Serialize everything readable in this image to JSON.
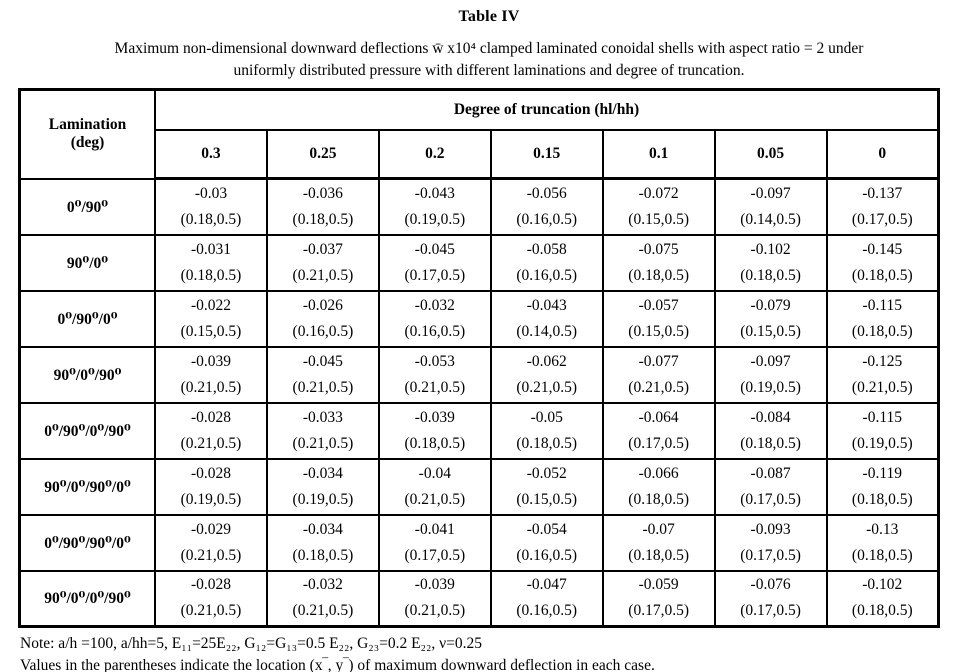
{
  "title": "Table IV",
  "caption": {
    "line1": "Maximum non-dimensional downward deflections  w̄ x10⁴ clamped laminated conoidal shells with aspect ratio = 2 under",
    "line2": "uniformly distributed pressure with different laminations and degree of truncation."
  },
  "table": {
    "corner_line1": "Lamination",
    "corner_line2": "(deg)",
    "group_header": "Degree of truncation (hl/hh)",
    "col_headers": [
      "0.3",
      "0.25",
      "0.2",
      "0.15",
      "0.1",
      "0.05",
      "0"
    ],
    "rows": [
      {
        "label": "0⁰/90⁰",
        "cells": [
          {
            "v": "-0.03",
            "loc": "(0.18,0.5)"
          },
          {
            "v": "-0.036",
            "loc": "(0.18,0.5)"
          },
          {
            "v": "-0.043",
            "loc": "(0.19,0.5)"
          },
          {
            "v": "-0.056",
            "loc": "(0.16,0.5)"
          },
          {
            "v": "-0.072",
            "loc": "(0.15,0.5)"
          },
          {
            "v": "-0.097",
            "loc": "(0.14,0.5)"
          },
          {
            "v": "-0.137",
            "loc": "(0.17,0.5)"
          }
        ]
      },
      {
        "label": "90⁰/0⁰",
        "cells": [
          {
            "v": "-0.031",
            "loc": "(0.18,0.5)"
          },
          {
            "v": "-0.037",
            "loc": "(0.21,0.5)"
          },
          {
            "v": "-0.045",
            "loc": "(0.17,0.5)"
          },
          {
            "v": "-0.058",
            "loc": "(0.16,0.5)"
          },
          {
            "v": "-0.075",
            "loc": "(0.18,0.5)"
          },
          {
            "v": "-0.102",
            "loc": "(0.18,0.5)"
          },
          {
            "v": "-0.145",
            "loc": "(0.18,0.5)"
          }
        ]
      },
      {
        "label": "0⁰/90⁰/0⁰",
        "cells": [
          {
            "v": "-0.022",
            "loc": "(0.15,0.5)"
          },
          {
            "v": "-0.026",
            "loc": "(0.16,0.5)"
          },
          {
            "v": "-0.032",
            "loc": "(0.16,0.5)"
          },
          {
            "v": "-0.043",
            "loc": "(0.14,0.5)"
          },
          {
            "v": "-0.057",
            "loc": "(0.15,0.5)"
          },
          {
            "v": "-0.079",
            "loc": "(0.15,0.5)"
          },
          {
            "v": "-0.115",
            "loloc": "",
            "loc": "(0.18,0.5)"
          }
        ]
      },
      {
        "label": "90⁰/0⁰/90⁰",
        "cells": [
          {
            "v": "-0.039",
            "loc": "(0.21,0.5)"
          },
          {
            "v": "-0.045",
            "loc": "(0.21,0.5)"
          },
          {
            "v": "-0.053",
            "loc": "(0.21,0.5)"
          },
          {
            "v": "-0.062",
            "loc": "(0.21,0.5)"
          },
          {
            "v": "-0.077",
            "loc": "(0.21,0.5)"
          },
          {
            "v": "-0.097",
            "loc": "(0.19,0.5)"
          },
          {
            "v": "-0.125",
            "loc": "(0.21,0.5)"
          }
        ]
      },
      {
        "label": "0⁰/90⁰/0⁰/90⁰",
        "cells": [
          {
            "v": "-0.028",
            "loc": "(0.21,0.5)"
          },
          {
            "v": "-0.033",
            "loc": "(0.21,0.5)"
          },
          {
            "v": "-0.039",
            "loc": "(0.18,0.5)"
          },
          {
            "v": "-0.05",
            "loc": "(0.18,0.5)"
          },
          {
            "v": "-0.064",
            "loc": "(0.17,0.5)"
          },
          {
            "v": "-0.084",
            "loc": "(0.18,0.5)"
          },
          {
            "v": "-0.115",
            "loc": "(0.19,0.5)"
          }
        ]
      },
      {
        "label": "90⁰/0⁰/90⁰/0⁰",
        "cells": [
          {
            "v": "-0.028",
            "loc": "(0.19,0.5)"
          },
          {
            "v": "-0.034",
            "loc": "(0.19,0.5)"
          },
          {
            "v": "-0.04",
            "loc": "(0.21,0.5)"
          },
          {
            "v": "-0.052",
            "loc": "(0.15,0.5)"
          },
          {
            "v": "-0.066",
            "loc": "(0.18,0.5)"
          },
          {
            "v": "-0.087",
            "loc": "(0.17,0.5)"
          },
          {
            "v": "-0.119",
            "loc": "(0.18,0.5)"
          }
        ]
      },
      {
        "label": "0⁰/90⁰/90⁰/0⁰",
        "cells": [
          {
            "v": "-0.029",
            "loc": "(0.21,0.5)"
          },
          {
            "v": "-0.034",
            "loc": "(0.18,0.5)"
          },
          {
            "v": "-0.041",
            "loc": "(0.17,0.5)"
          },
          {
            "v": "-0.054",
            "loc": "(0.16,0.5)"
          },
          {
            "v": "-0.07",
            "loc": "(0.18,0.5)"
          },
          {
            "v": "-0.093",
            "loc": "(0.17,0.5)"
          },
          {
            "v": "-0.13",
            "loc": "(0.18,0.5)"
          }
        ]
      },
      {
        "label": "90⁰/0⁰/0⁰/90⁰",
        "cells": [
          {
            "v": "-0.028",
            "loc": "(0.21,0.5)"
          },
          {
            "v": "-0.032",
            "loc": "(0.21,0.5)"
          },
          {
            "v": "-0.039",
            "loc": "(0.21,0.5)"
          },
          {
            "v": "-0.047",
            "loc": "(0.16,0.5)"
          },
          {
            "v": "-0.059",
            "loc": "(0.17,0.5)"
          },
          {
            "v": "-0.076",
            "loc": "(0.17,0.5)"
          },
          {
            "v": "-0.102",
            "loc": "(0.18,0.5)"
          }
        ]
      }
    ]
  },
  "notes": [
    "Note: a/h =100, a/hh=5, E₁₁=25E₂₂, G₁₂=G₁₃=0.5 E₂₂, G₂₃=0.2 E₂₂, ν=0.25",
    "Values in the parentheses indicate the location (x‾, y‾) of maximum downward deflection in each case."
  ]
}
